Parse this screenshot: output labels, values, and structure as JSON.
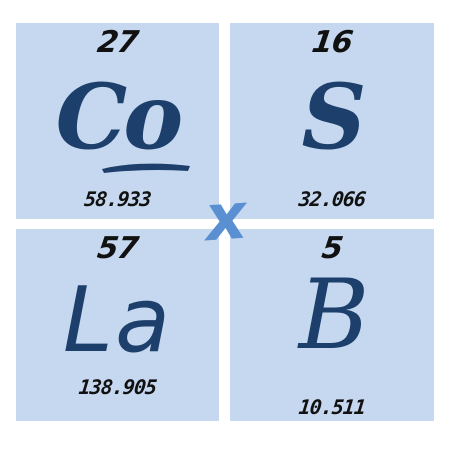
{
  "tiles": [
    {
      "atomic_number": "27",
      "symbol": "Co",
      "mass": "58.933"
    },
    {
      "atomic_number": "16",
      "symbol": "S",
      "mass": "32.066"
    },
    {
      "atomic_number": "57",
      "symbol": "La",
      "mass": "138.905"
    },
    {
      "atomic_number": "5",
      "symbol": "B",
      "mass": "10.511"
    }
  ],
  "operator": "x",
  "colors": {
    "tile_background": "#c5d8ef",
    "symbol": "#1d3f6b",
    "numbers": "#111111",
    "operator": "#5a8fd2"
  }
}
